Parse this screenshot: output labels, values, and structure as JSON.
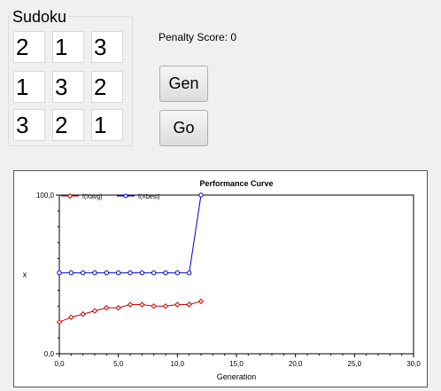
{
  "sudoku": {
    "title": "Sudoku",
    "cells": [
      [
        "2",
        "1",
        "3"
      ],
      [
        "1",
        "3",
        "2"
      ],
      [
        "3",
        "2",
        "1"
      ]
    ]
  },
  "penalty_label": "Penalty Score: 0",
  "buttons": {
    "gen": "Gen",
    "go": "Go"
  },
  "chart_data": {
    "type": "line",
    "title": "Performance Curve",
    "xlabel": "Generation",
    "ylabel": "x",
    "xlim": [
      0,
      30
    ],
    "ylim": [
      0,
      100
    ],
    "xticks": [
      "0,0",
      "5,0",
      "10,0",
      "15,0",
      "20,0",
      "25,0",
      "30,0"
    ],
    "yticks": [
      "0,0",
      "100,0"
    ],
    "legend_position": "top-left",
    "grid": false,
    "series": [
      {
        "name": "f(Xavg)",
        "color": "#cc0000",
        "marker": "diamond",
        "x": [
          0,
          1,
          2,
          3,
          4,
          5,
          6,
          7,
          8,
          9,
          10,
          11,
          12
        ],
        "y": [
          20,
          23,
          25,
          27,
          29,
          29,
          31,
          31,
          30,
          30,
          31,
          31,
          33
        ]
      },
      {
        "name": "f(Xbest)",
        "color": "#0000cc",
        "marker": "circle",
        "x": [
          0,
          1,
          2,
          3,
          4,
          5,
          6,
          7,
          8,
          9,
          10,
          11,
          12
        ],
        "y": [
          51,
          51,
          51,
          51,
          51,
          51,
          51,
          51,
          51,
          51,
          51,
          51,
          100
        ]
      }
    ]
  }
}
